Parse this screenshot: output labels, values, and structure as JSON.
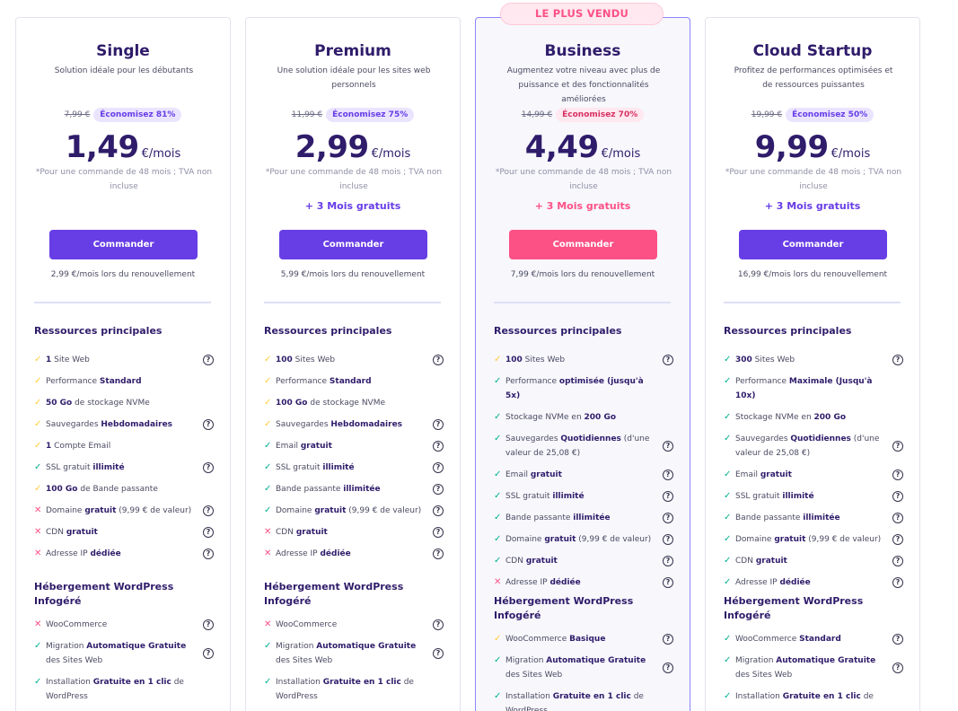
{
  "featured_badge": "LE PLUS VENDU",
  "section_titles": {
    "resources": "Ressources principales",
    "wordpress": "Hébergement WordPress Infogéré"
  },
  "colors": {
    "accent": "#673de6",
    "accent_pink": "#fc5185",
    "check": "#00b090",
    "partial": "#ffcd35",
    "cross": "#fc5185"
  },
  "icons": {
    "included": "check-icon",
    "partial": "check-icon-yellow",
    "excluded": "cross-icon",
    "help": "help-circle-icon"
  },
  "plans": [
    {
      "name": "Single",
      "description": "Solution idéale pour les débutants",
      "old_price": "7,99 €",
      "save_label": "Économisez 81%",
      "price": "1,49",
      "price_unit": "€/mois",
      "price_note": "*Pour une commande de 48 mois ; TVA non incluse",
      "bonus": "",
      "button": "Commander",
      "renewal": "2,99 €/mois lors du renouvellement",
      "features": [
        {
          "status": "partial",
          "parts": [
            {
              "t": "1",
              "b": true
            },
            {
              "t": " Site Web",
              "b": false
            }
          ],
          "help": true
        },
        {
          "status": "partial",
          "parts": [
            {
              "t": "Performance ",
              "b": false
            },
            {
              "t": "Standard",
              "b": true
            }
          ],
          "help": false
        },
        {
          "status": "partial",
          "parts": [
            {
              "t": "50 Go",
              "b": true
            },
            {
              "t": " de stockage NVMe",
              "b": false
            }
          ],
          "help": false
        },
        {
          "status": "partial",
          "parts": [
            {
              "t": "Sauvegardes ",
              "b": false
            },
            {
              "t": "Hebdomadaires",
              "b": true
            }
          ],
          "help": true
        },
        {
          "status": "partial",
          "parts": [
            {
              "t": "1",
              "b": true
            },
            {
              "t": " Compte Email",
              "b": false
            }
          ],
          "help": false
        },
        {
          "status": "included",
          "parts": [
            {
              "t": "SSL gratuit ",
              "b": false
            },
            {
              "t": "illimité",
              "b": true
            }
          ],
          "help": true
        },
        {
          "status": "partial",
          "parts": [
            {
              "t": "100 Go",
              "b": true
            },
            {
              "t": " de Bande passante",
              "b": false
            }
          ],
          "help": false
        },
        {
          "status": "excluded",
          "parts": [
            {
              "t": "Domaine ",
              "b": false
            },
            {
              "t": "gratuit",
              "b": true
            },
            {
              "t": " (9,99 € de valeur)",
              "b": false
            }
          ],
          "help": true
        },
        {
          "status": "excluded",
          "parts": [
            {
              "t": "CDN ",
              "b": false
            },
            {
              "t": "gratuit",
              "b": true
            }
          ],
          "help": true
        },
        {
          "status": "excluded",
          "parts": [
            {
              "t": "Adresse IP ",
              "b": false
            },
            {
              "t": "dédiée",
              "b": true
            }
          ],
          "help": true
        }
      ],
      "wp_features": [
        {
          "status": "excluded",
          "parts": [
            {
              "t": "WooCommerce",
              "b": false
            }
          ],
          "help": true
        },
        {
          "status": "included",
          "parts": [
            {
              "t": "Migration ",
              "b": false
            },
            {
              "t": "Automatique Gratuite",
              "b": true
            },
            {
              "t": " des Sites Web",
              "b": false
            }
          ],
          "help": true
        },
        {
          "status": "included",
          "parts": [
            {
              "t": "Installation ",
              "b": false
            },
            {
              "t": "Gratuite en 1 clic",
              "b": true
            },
            {
              "t": " de WordPress",
              "b": false
            }
          ],
          "help": false
        }
      ]
    },
    {
      "name": "Premium",
      "description": "Une solution idéale pour les sites web personnels",
      "old_price": "11,99 €",
      "save_label": "Économisez 75%",
      "price": "2,99",
      "price_unit": "€/mois",
      "price_note": "*Pour une commande de 48 mois ; TVA non incluse",
      "bonus": "+ 3 Mois gratuits",
      "button": "Commander",
      "renewal": "5,99 €/mois lors du renouvellement",
      "features": [
        {
          "status": "partial",
          "parts": [
            {
              "t": "100",
              "b": true
            },
            {
              "t": " Sites Web",
              "b": false
            }
          ],
          "help": true
        },
        {
          "status": "partial",
          "parts": [
            {
              "t": "Performance ",
              "b": false
            },
            {
              "t": "Standard",
              "b": true
            }
          ],
          "help": false
        },
        {
          "status": "partial",
          "parts": [
            {
              "t": "100 Go",
              "b": true
            },
            {
              "t": " de stockage NVMe",
              "b": false
            }
          ],
          "help": false
        },
        {
          "status": "partial",
          "parts": [
            {
              "t": "Sauvegardes ",
              "b": false
            },
            {
              "t": "Hebdomadaires",
              "b": true
            }
          ],
          "help": true
        },
        {
          "status": "included",
          "parts": [
            {
              "t": "Email ",
              "b": false
            },
            {
              "t": "gratuit",
              "b": true
            }
          ],
          "help": true
        },
        {
          "status": "included",
          "parts": [
            {
              "t": "SSL gratuit ",
              "b": false
            },
            {
              "t": "illimité",
              "b": true
            }
          ],
          "help": true
        },
        {
          "status": "included",
          "parts": [
            {
              "t": "Bande passante ",
              "b": false
            },
            {
              "t": "illimitée",
              "b": true
            }
          ],
          "help": true
        },
        {
          "status": "included",
          "parts": [
            {
              "t": "Domaine ",
              "b": false
            },
            {
              "t": "gratuit",
              "b": true
            },
            {
              "t": " (9,99 € de valeur)",
              "b": false
            }
          ],
          "help": true
        },
        {
          "status": "excluded",
          "parts": [
            {
              "t": "CDN ",
              "b": false
            },
            {
              "t": "gratuit",
              "b": true
            }
          ],
          "help": true
        },
        {
          "status": "excluded",
          "parts": [
            {
              "t": "Adresse IP ",
              "b": false
            },
            {
              "t": "dédiée",
              "b": true
            }
          ],
          "help": true
        }
      ],
      "wp_features": [
        {
          "status": "excluded",
          "parts": [
            {
              "t": "WooCommerce",
              "b": false
            }
          ],
          "help": true
        },
        {
          "status": "included",
          "parts": [
            {
              "t": "Migration ",
              "b": false
            },
            {
              "t": "Automatique Gratuite",
              "b": true
            },
            {
              "t": " des Sites Web",
              "b": false
            }
          ],
          "help": true
        },
        {
          "status": "included",
          "parts": [
            {
              "t": "Installation ",
              "b": false
            },
            {
              "t": "Gratuite en 1 clic",
              "b": true
            },
            {
              "t": " de WordPress",
              "b": false
            }
          ],
          "help": false
        }
      ]
    },
    {
      "name": "Business",
      "description": "Augmentez votre niveau avec plus de puissance et des fonctionnalités améliorées",
      "old_price": "14,99 €",
      "save_label": "Économisez 70%",
      "price": "4,49",
      "price_unit": "€/mois",
      "price_note": "*Pour une commande de 48 mois ; TVA non incluse",
      "bonus": "+ 3 Mois gratuits",
      "button": "Commander",
      "renewal": "7,99 €/mois lors du renouvellement",
      "features": [
        {
          "status": "partial",
          "parts": [
            {
              "t": "100",
              "b": true
            },
            {
              "t": " Sites Web",
              "b": false
            }
          ],
          "help": true
        },
        {
          "status": "included",
          "parts": [
            {
              "t": "Performance ",
              "b": false
            },
            {
              "t": "optimisée (jusqu'à 5x)",
              "b": true
            }
          ],
          "help": false
        },
        {
          "status": "included",
          "parts": [
            {
              "t": "Stockage NVMe en ",
              "b": false
            },
            {
              "t": "200 Go",
              "b": true
            }
          ],
          "help": false
        },
        {
          "status": "included",
          "parts": [
            {
              "t": "Sauvegardes ",
              "b": false
            },
            {
              "t": "Quotidiennes",
              "b": true
            },
            {
              "t": " (d'une valeur de 25,08 €)",
              "b": false
            }
          ],
          "help": true
        },
        {
          "status": "included",
          "parts": [
            {
              "t": "Email ",
              "b": false
            },
            {
              "t": "gratuit",
              "b": true
            }
          ],
          "help": true
        },
        {
          "status": "included",
          "parts": [
            {
              "t": "SSL gratuit ",
              "b": false
            },
            {
              "t": "illimité",
              "b": true
            }
          ],
          "help": true
        },
        {
          "status": "included",
          "parts": [
            {
              "t": "Bande passante ",
              "b": false
            },
            {
              "t": "illimitée",
              "b": true
            }
          ],
          "help": true
        },
        {
          "status": "included",
          "parts": [
            {
              "t": "Domaine ",
              "b": false
            },
            {
              "t": "gratuit",
              "b": true
            },
            {
              "t": " (9,99 € de valeur)",
              "b": false
            }
          ],
          "help": true
        },
        {
          "status": "included",
          "parts": [
            {
              "t": "CDN ",
              "b": false
            },
            {
              "t": "gratuit",
              "b": true
            }
          ],
          "help": true
        },
        {
          "status": "excluded",
          "parts": [
            {
              "t": "Adresse IP ",
              "b": false
            },
            {
              "t": "dédiée",
              "b": true
            }
          ],
          "help": true
        }
      ],
      "wp_features": [
        {
          "status": "partial",
          "parts": [
            {
              "t": "WooCommerce ",
              "b": false
            },
            {
              "t": "Basique",
              "b": true
            }
          ],
          "help": true
        },
        {
          "status": "included",
          "parts": [
            {
              "t": "Migration ",
              "b": false
            },
            {
              "t": "Automatique Gratuite",
              "b": true
            },
            {
              "t": " des Sites Web",
              "b": false
            }
          ],
          "help": true
        },
        {
          "status": "included",
          "parts": [
            {
              "t": "Installation ",
              "b": false
            },
            {
              "t": "Gratuite en 1 clic",
              "b": true
            },
            {
              "t": " de WordPress",
              "b": false
            }
          ],
          "help": false
        }
      ]
    },
    {
      "name": "Cloud Startup",
      "description": "Profitez de performances optimisées et de ressources puissantes",
      "old_price": "19,99 €",
      "save_label": "Économisez 50%",
      "price": "9,99",
      "price_unit": "€/mois",
      "price_note": "*Pour une commande de 48 mois ; TVA non incluse",
      "bonus": "+ 3 Mois gratuits",
      "button": "Commander",
      "renewal": "16,99 €/mois lors du renouvellement",
      "features": [
        {
          "status": "included",
          "parts": [
            {
              "t": "300",
              "b": true
            },
            {
              "t": " Sites Web",
              "b": false
            }
          ],
          "help": true
        },
        {
          "status": "included",
          "parts": [
            {
              "t": "Performance ",
              "b": false
            },
            {
              "t": "Maximale (Jusqu'à 10x)",
              "b": true
            }
          ],
          "help": false
        },
        {
          "status": "included",
          "parts": [
            {
              "t": "Stockage NVMe en ",
              "b": false
            },
            {
              "t": "200 Go",
              "b": true
            }
          ],
          "help": false
        },
        {
          "status": "included",
          "parts": [
            {
              "t": "Sauvegardes ",
              "b": false
            },
            {
              "t": "Quotidiennes",
              "b": true
            },
            {
              "t": " (d'une valeur de 25,08 €)",
              "b": false
            }
          ],
          "help": true
        },
        {
          "status": "included",
          "parts": [
            {
              "t": "Email ",
              "b": false
            },
            {
              "t": "gratuit",
              "b": true
            }
          ],
          "help": true
        },
        {
          "status": "included",
          "parts": [
            {
              "t": "SSL gratuit ",
              "b": false
            },
            {
              "t": "illimité",
              "b": true
            }
          ],
          "help": true
        },
        {
          "status": "included",
          "parts": [
            {
              "t": "Bande passante ",
              "b": false
            },
            {
              "t": "illimitée",
              "b": true
            }
          ],
          "help": true
        },
        {
          "status": "included",
          "parts": [
            {
              "t": "Domaine ",
              "b": false
            },
            {
              "t": "gratuit",
              "b": true
            },
            {
              "t": " (9,99 € de valeur)",
              "b": false
            }
          ],
          "help": true
        },
        {
          "status": "included",
          "parts": [
            {
              "t": "CDN ",
              "b": false
            },
            {
              "t": "gratuit",
              "b": true
            }
          ],
          "help": true
        },
        {
          "status": "included",
          "parts": [
            {
              "t": "Adresse IP ",
              "b": false
            },
            {
              "t": "dédiée",
              "b": true
            }
          ],
          "help": true
        }
      ],
      "wp_features": [
        {
          "status": "included",
          "parts": [
            {
              "t": "WooCommerce ",
              "b": false
            },
            {
              "t": "Standard",
              "b": true
            }
          ],
          "help": true
        },
        {
          "status": "included",
          "parts": [
            {
              "t": "Migration ",
              "b": false
            },
            {
              "t": "Automatique Gratuite",
              "b": true
            },
            {
              "t": " des Sites Web",
              "b": false
            }
          ],
          "help": true
        },
        {
          "status": "included",
          "parts": [
            {
              "t": "Installation ",
              "b": false
            },
            {
              "t": "Gratuite en 1 clic",
              "b": true
            },
            {
              "t": " de",
              "b": false
            }
          ],
          "help": false
        }
      ]
    }
  ]
}
